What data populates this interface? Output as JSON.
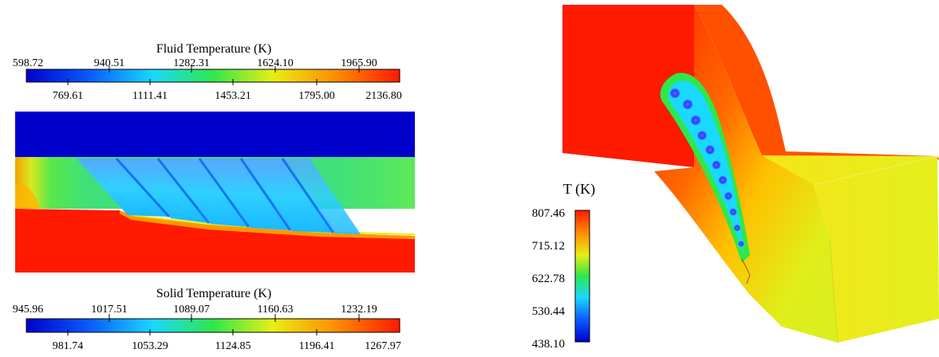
{
  "fluid_colorbar": {
    "title": "Fluid Temperature (K)",
    "top_ticks": [
      "598.72",
      "940.51",
      "1282.31",
      "1624.10",
      "1965.90"
    ],
    "bottom_ticks": [
      "769.61",
      "1111.41",
      "1453.21",
      "1795.00",
      "2136.80"
    ]
  },
  "solid_colorbar": {
    "title": "Solid Temperature (K)",
    "top_ticks": [
      "945.96",
      "1017.51",
      "1089.07",
      "1160.63",
      "1232.19"
    ],
    "bottom_ticks": [
      "981.74",
      "1053.29",
      "1124.85",
      "1196.41",
      "1267.97"
    ]
  },
  "blade_colorbar": {
    "title": "T (K)",
    "ticks": [
      "807.46",
      "715.12",
      "622.78",
      "530.44",
      "438.10"
    ]
  },
  "colors": {
    "jet": [
      "#0000cc",
      "#0a5cff",
      "#19d9ff",
      "#2ee84a",
      "#e8ee14",
      "#ff8c00",
      "#ff1a00"
    ]
  }
}
